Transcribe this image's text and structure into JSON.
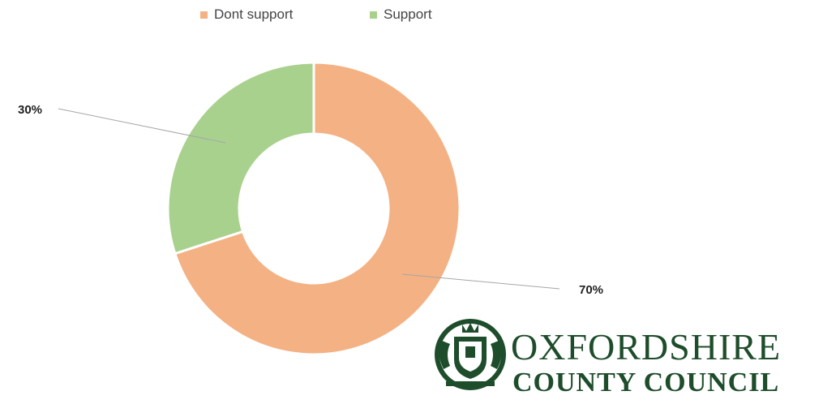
{
  "chart_data": {
    "type": "pie",
    "subtype": "doughnut",
    "title": "",
    "categories": [
      "Dont support",
      "Support"
    ],
    "values": [
      70,
      30
    ],
    "data_labels": [
      "70%",
      "30%"
    ],
    "colors": [
      "#f4b183",
      "#a9d18e"
    ],
    "legend": {
      "position": "top",
      "entries": [
        "Dont support",
        "Support"
      ]
    }
  },
  "logo": {
    "line1": "OXFORDSHIRE",
    "line2": "COUNTY COUNCIL",
    "color": "#1e4d2b",
    "icon": "coat-of-arms-icon"
  }
}
